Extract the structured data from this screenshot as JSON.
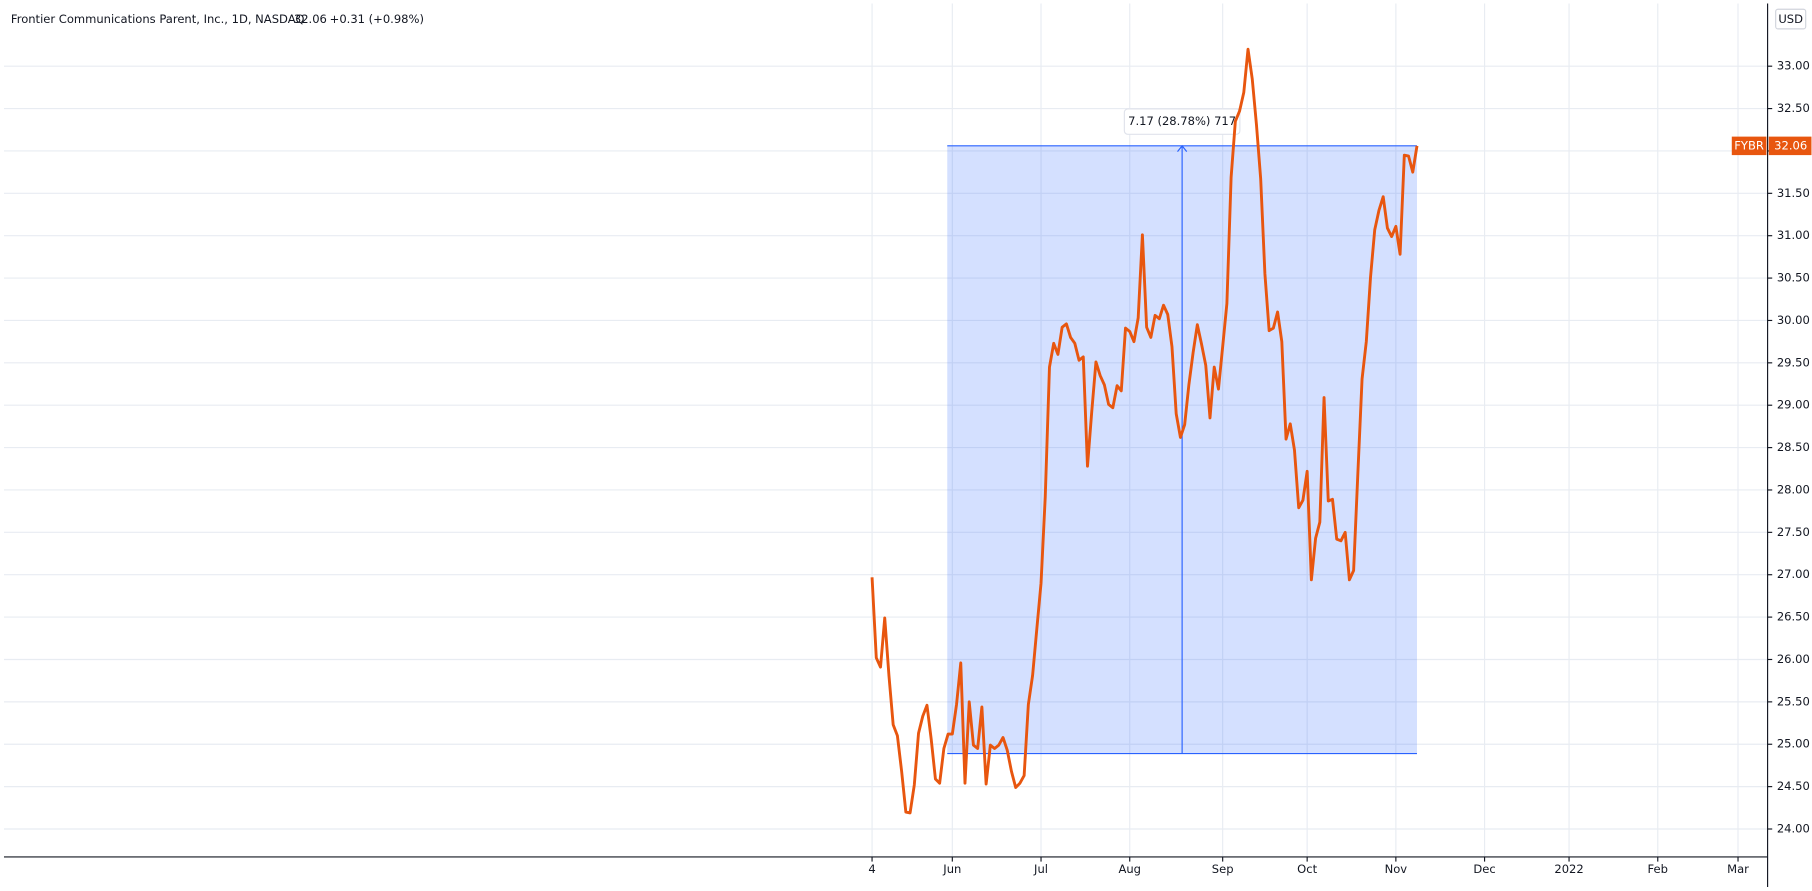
{
  "chart_data": {
    "type": "line",
    "title": "Frontier Communications Parent, Inc., 1D, NASDAQ",
    "price": 32.06,
    "change": "+0.31 (+0.98%)",
    "currency": "USD",
    "symbol": "FYBR",
    "color": "#e8560f",
    "grid": true,
    "series": [
      {
        "name": "FYBR",
        "color": "#e8560f",
        "values": [
          26.97,
          26.02,
          25.91,
          26.49,
          25.81,
          25.23,
          25.1,
          24.68,
          24.2,
          24.19,
          24.52,
          25.13,
          25.33,
          25.46,
          25.06,
          24.59,
          24.54,
          24.95,
          25.12,
          25.12,
          25.47,
          25.96,
          24.54,
          25.5,
          24.99,
          24.95,
          25.44,
          24.53,
          24.99,
          24.95,
          24.99,
          25.08,
          24.93,
          24.68,
          24.49,
          24.54,
          24.63,
          25.47,
          25.81,
          26.36,
          26.9,
          27.92,
          29.45,
          29.73,
          29.6,
          29.92,
          29.96,
          29.8,
          29.73,
          29.53,
          29.57,
          28.28,
          28.92,
          29.51,
          29.35,
          29.24,
          29.01,
          28.97,
          29.23,
          29.17,
          29.91,
          29.87,
          29.75,
          30.03,
          31.01,
          29.92,
          29.8,
          30.06,
          30.02,
          30.18,
          30.07,
          29.69,
          28.9,
          28.62,
          28.77,
          29.24,
          29.62,
          29.95,
          29.72,
          29.47,
          28.85,
          29.45,
          29.19,
          29.69,
          30.2,
          31.69,
          32.35,
          32.47,
          32.69,
          33.2,
          32.85,
          32.31,
          31.67,
          30.55,
          29.88,
          29.91,
          30.1,
          29.75,
          28.6,
          28.78,
          28.47,
          27.79,
          27.88,
          28.22,
          26.94,
          27.43,
          27.62,
          29.09,
          27.87,
          27.89,
          27.42,
          27.4,
          27.5,
          26.94,
          27.05,
          28.19,
          29.31,
          29.75,
          30.51,
          31.07,
          31.3,
          31.46,
          31.09,
          30.99,
          31.11,
          30.78,
          31.95,
          31.94,
          31.75,
          32.06
        ]
      }
    ],
    "xlim": [
      -205.5,
      212
    ],
    "xticks": [
      {
        "value": 0,
        "label": "4"
      },
      {
        "value": 19,
        "label": "Jun"
      },
      {
        "value": 40,
        "label": "Jul"
      },
      {
        "value": 61,
        "label": "Aug"
      },
      {
        "value": 83,
        "label": "Sep"
      },
      {
        "value": 103,
        "label": "Oct"
      },
      {
        "value": 124,
        "label": "Nov"
      },
      {
        "value": 145,
        "label": "Dec"
      },
      {
        "value": 165,
        "label": "2022"
      },
      {
        "value": 186,
        "label": "Feb"
      },
      {
        "value": 205,
        "label": "Mar"
      }
    ],
    "ylim": [
      23.67,
      33.74
    ],
    "yticks": [
      {
        "value": 24,
        "label": "24.00"
      },
      {
        "value": 24.5,
        "label": "24.50"
      },
      {
        "value": 25,
        "label": "25.00"
      },
      {
        "value": 25.5,
        "label": "25.50"
      },
      {
        "value": 26,
        "label": "26.00"
      },
      {
        "value": 26.5,
        "label": "26.50"
      },
      {
        "value": 27,
        "label": "27.00"
      },
      {
        "value": 27.5,
        "label": "27.50"
      },
      {
        "value": 28,
        "label": "28.00"
      },
      {
        "value": 28.5,
        "label": "28.50"
      },
      {
        "value": 29,
        "label": "29.00"
      },
      {
        "value": 29.5,
        "label": "29.50"
      },
      {
        "value": 30,
        "label": "30.00"
      },
      {
        "value": 30.5,
        "label": "30.50"
      },
      {
        "value": 31,
        "label": "31.00"
      },
      {
        "value": 31.5,
        "label": "31.50"
      },
      {
        "value": 32,
        "label": "32.00"
      },
      {
        "value": 32.5,
        "label": "32.50"
      },
      {
        "value": 33,
        "label": "33.00"
      }
    ],
    "measure": {
      "label": "7.17 (28.78%) 717",
      "from": 24.89,
      "to": 32.06,
      "start": 17.8,
      "end": 129
    }
  }
}
